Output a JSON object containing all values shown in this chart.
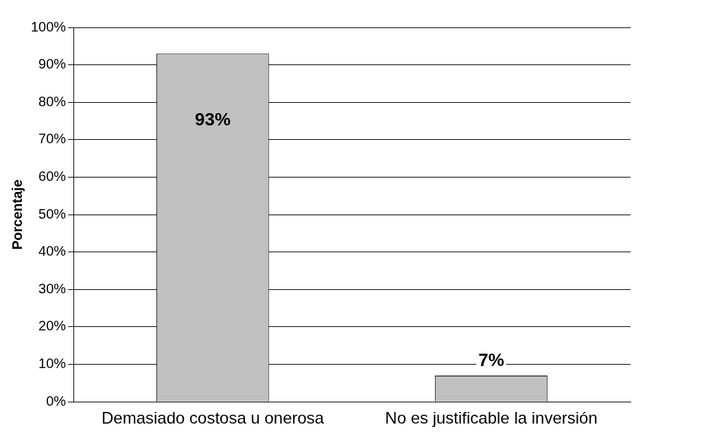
{
  "chart_data": {
    "type": "bar",
    "ylabel": "Porcentaje",
    "categories": [
      "Demasiado costosa u onerosa",
      "No es justificable la inversión"
    ],
    "values": [
      93,
      7
    ],
    "color": "#c0c0c0",
    "value_labels": [
      "93%",
      "7%"
    ],
    "ylim": [
      0,
      100
    ],
    "yticks": [
      {
        "value": 0,
        "label": "0%"
      },
      {
        "value": 10,
        "label": "10%"
      },
      {
        "value": 20,
        "label": "20%"
      },
      {
        "value": 30,
        "label": "30%"
      },
      {
        "value": 40,
        "label": "40%"
      },
      {
        "value": 50,
        "label": "50%"
      },
      {
        "value": 60,
        "label": "60%"
      },
      {
        "value": 70,
        "label": "70%"
      },
      {
        "value": 80,
        "label": "80%"
      },
      {
        "value": 90,
        "label": "90%"
      },
      {
        "value": 100,
        "label": "100%"
      }
    ],
    "grid": "y",
    "legend": false
  }
}
